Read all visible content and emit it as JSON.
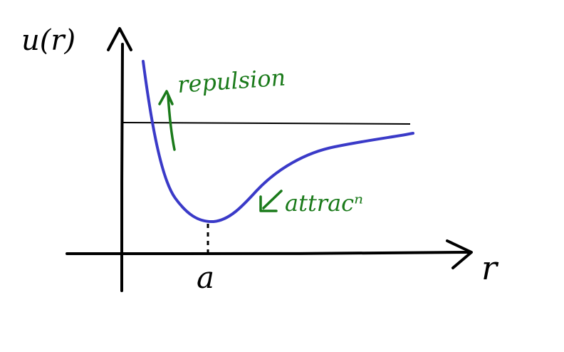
{
  "labels": {
    "y_axis": "u(r)",
    "x_axis": "r",
    "min_point": "a",
    "repulsion": "repulsion",
    "attraction": "attracⁿ"
  },
  "colors": {
    "ink": "#000000",
    "curve": "#3a3ac8",
    "annotation": "#1a7a1a",
    "background": "#ffffff"
  }
}
